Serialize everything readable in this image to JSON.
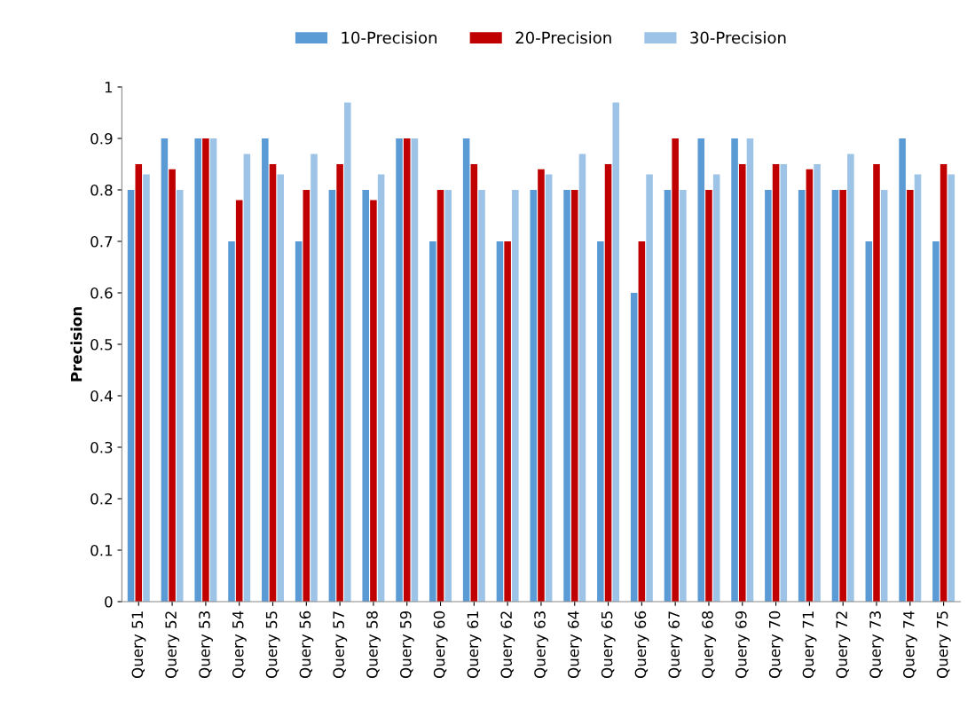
{
  "chart_data": {
    "type": "bar",
    "ylabel": "Precision",
    "categories": [
      "Query 51",
      "Query 52",
      "Query 53",
      "Query 54",
      "Query 55",
      "Query 56",
      "Query 57",
      "Query 58",
      "Query 59",
      "Query 60",
      "Query 61",
      "Query 62",
      "Query 63",
      "Query 64",
      "Query 65",
      "Query 66",
      "Query 67",
      "Query 68",
      "Query 69",
      "Query 70",
      "Query 71",
      "Query 72",
      "Query 73",
      "Query 74",
      "Query 75"
    ],
    "series": [
      {
        "name": "10-Precision",
        "color": "#5b9bd5",
        "values": [
          0.8,
          0.9,
          0.9,
          0.7,
          0.9,
          0.7,
          0.8,
          0.8,
          0.9,
          0.7,
          0.9,
          0.7,
          0.8,
          0.8,
          0.7,
          0.6,
          0.8,
          0.9,
          0.9,
          0.8,
          0.8,
          0.8,
          0.7,
          0.9,
          0.7
        ]
      },
      {
        "name": "20-Precision",
        "color": "#c00000",
        "values": [
          0.85,
          0.84,
          0.9,
          0.78,
          0.85,
          0.8,
          0.85,
          0.78,
          0.9,
          0.8,
          0.85,
          0.7,
          0.84,
          0.8,
          0.85,
          0.7,
          0.9,
          0.8,
          0.85,
          0.85,
          0.84,
          0.8,
          0.85,
          0.8,
          0.85
        ]
      },
      {
        "name": "30-Precision",
        "color": "#9dc3e6",
        "values": [
          0.83,
          0.8,
          0.9,
          0.87,
          0.83,
          0.87,
          0.97,
          0.83,
          0.9,
          0.8,
          0.8,
          0.8,
          0.83,
          0.87,
          0.97,
          0.83,
          0.8,
          0.83,
          0.9,
          0.85,
          0.85,
          0.87,
          0.8,
          0.83,
          0.83
        ]
      }
    ],
    "ylim": [
      0,
      1
    ],
    "yticks": [
      0,
      0.1,
      0.2,
      0.3,
      0.4,
      0.5,
      0.6,
      0.7,
      0.8,
      0.9,
      1
    ],
    "grid": false,
    "legend": "top"
  }
}
